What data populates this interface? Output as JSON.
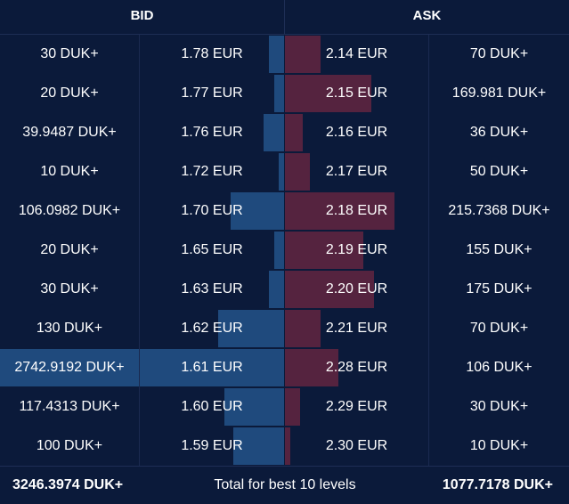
{
  "header": {
    "bid_title": "BID",
    "ask_title": "ASK"
  },
  "colors": {
    "background": "#0b1a3a",
    "bid_bar": "#1f4a7d",
    "ask_bar": "#55233f",
    "text": "#ffffff"
  },
  "rows": [
    {
      "bid_amount": "30 DUK+",
      "bid_price": "1.78 EUR",
      "ask_price": "2.14 EUR",
      "ask_amount": "70 DUK+",
      "bid_depth": 0.054,
      "ask_depth": 0.124
    },
    {
      "bid_amount": "20 DUK+",
      "bid_price": "1.77 EUR",
      "ask_price": "2.15 EUR",
      "ask_amount": "169.981 DUK+",
      "bid_depth": 0.036,
      "ask_depth": 0.302
    },
    {
      "bid_amount": "39.9487 DUK+",
      "bid_price": "1.76 EUR",
      "ask_price": "2.16 EUR",
      "ask_amount": "36 DUK+",
      "bid_depth": 0.071,
      "ask_depth": 0.064
    },
    {
      "bid_amount": "10 DUK+",
      "bid_price": "1.72 EUR",
      "ask_price": "2.17 EUR",
      "ask_amount": "50 DUK+",
      "bid_depth": 0.018,
      "ask_depth": 0.089
    },
    {
      "bid_amount": "106.0982 DUK+",
      "bid_price": "1.70 EUR",
      "ask_price": "2.18 EUR",
      "ask_amount": "215.7368 DUK+",
      "bid_depth": 0.189,
      "ask_depth": 0.383
    },
    {
      "bid_amount": "20 DUK+",
      "bid_price": "1.65 EUR",
      "ask_price": "2.19 EUR",
      "ask_amount": "155 DUK+",
      "bid_depth": 0.036,
      "ask_depth": 0.275
    },
    {
      "bid_amount": "30 DUK+",
      "bid_price": "1.63 EUR",
      "ask_price": "2.20 EUR",
      "ask_amount": "175 DUK+",
      "bid_depth": 0.054,
      "ask_depth": 0.311
    },
    {
      "bid_amount": "130 DUK+",
      "bid_price": "1.62 EUR",
      "ask_price": "2.21 EUR",
      "ask_amount": "70 DUK+",
      "bid_depth": 0.232,
      "ask_depth": 0.124
    },
    {
      "bid_amount": "2742.9192 DUK+",
      "bid_price": "1.61 EUR",
      "ask_price": "2.28 EUR",
      "ask_amount": "106 DUK+",
      "bid_depth": 1.0,
      "ask_depth": 0.188
    },
    {
      "bid_amount": "117.4313 DUK+",
      "bid_price": "1.60 EUR",
      "ask_price": "2.29 EUR",
      "ask_amount": "30 DUK+",
      "bid_depth": 0.209,
      "ask_depth": 0.053
    },
    {
      "bid_amount": "100 DUK+",
      "bid_price": "1.59 EUR",
      "ask_price": "2.30 EUR",
      "ask_amount": "10 DUK+",
      "bid_depth": 0.179,
      "ask_depth": 0.018
    }
  ],
  "footer": {
    "bid_total": "3246.3974 DUK+",
    "label": "Total for best 10 levels",
    "ask_total": "1077.7178 DUK+"
  }
}
